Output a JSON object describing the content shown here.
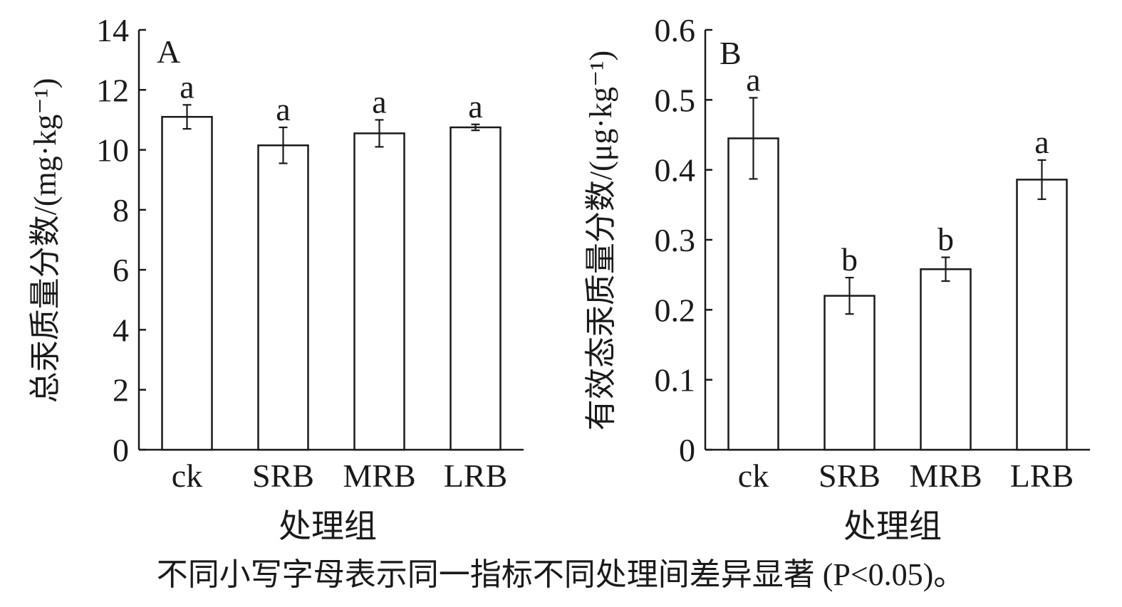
{
  "chart_data": [
    {
      "type": "bar",
      "panel_label": "A",
      "categories": [
        "ck",
        "SRB",
        "MRB",
        "LRB"
      ],
      "values": [
        11.1,
        10.15,
        10.55,
        10.75
      ],
      "errors": [
        0.4,
        0.6,
        0.45,
        0.1
      ],
      "significance": [
        "a",
        "a",
        "a",
        "a"
      ],
      "ylabel": "总汞质量分数/(mg·kg⁻¹)",
      "xlabel": "处理组",
      "ylim": [
        0,
        14
      ],
      "yticks": [
        0,
        2,
        4,
        6,
        8,
        10,
        12,
        14
      ],
      "ytick_labels": [
        "0",
        "2",
        "4",
        "6",
        "8",
        "10",
        "12",
        "14"
      ]
    },
    {
      "type": "bar",
      "panel_label": "B",
      "categories": [
        "ck",
        "SRB",
        "MRB",
        "LRB"
      ],
      "values": [
        0.445,
        0.22,
        0.258,
        0.386
      ],
      "errors": [
        0.058,
        0.026,
        0.017,
        0.028
      ],
      "significance": [
        "a",
        "b",
        "b",
        "a"
      ],
      "ylabel": "有效态汞质量分数/(μg·kg⁻¹)",
      "xlabel": "处理组",
      "ylim": [
        0,
        0.6
      ],
      "yticks": [
        0,
        0.1,
        0.2,
        0.3,
        0.4,
        0.5,
        0.6
      ],
      "ytick_labels": [
        "0",
        "0.1",
        "0.2",
        "0.3",
        "0.4",
        "0.5",
        "0.6"
      ]
    }
  ],
  "caption": "不同小写字母表示同一指标不同处理间差异显著 (P<0.05)。",
  "colors": {
    "ink": "#1a1a1a",
    "bar_fill": "#ffffff"
  }
}
